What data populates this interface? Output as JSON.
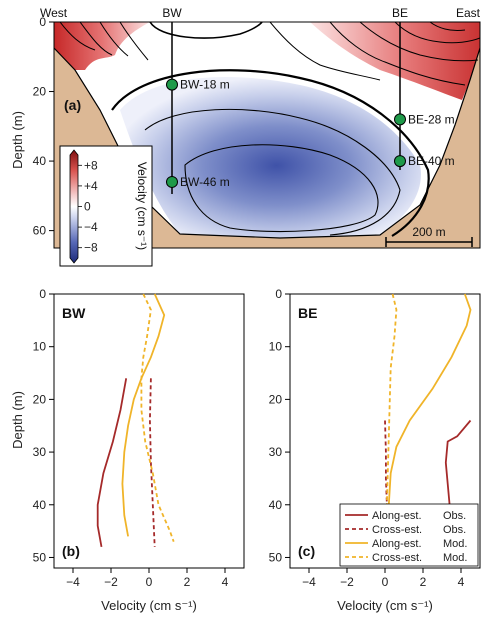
{
  "chart_data": [
    {
      "type": "heatmap",
      "panel_label": "(a)",
      "ylabel": "Depth (m)",
      "ylim": [
        0,
        65
      ],
      "yticks": [
        "0",
        "20",
        "40",
        "60"
      ],
      "top_labels": {
        "west": "West",
        "bw": "BW",
        "be": "BE",
        "east": "East"
      },
      "stations": [
        {
          "label": "BW-18 m",
          "depth": 18,
          "mooring": "BW"
        },
        {
          "label": "BW-46 m",
          "depth": 46,
          "mooring": "BW"
        },
        {
          "label": "BE-28 m",
          "depth": 28,
          "mooring": "BE"
        },
        {
          "label": "BE-40 m",
          "depth": 40,
          "mooring": "BE"
        }
      ],
      "colorbar": {
        "label": "Velocity (cm s⁻¹)",
        "range": [
          -10,
          10
        ],
        "ticks": [
          "+8",
          "+4",
          "0",
          "−4",
          "−8"
        ],
        "colors": {
          "pos": "#c62828",
          "neg": "#3a4fa3",
          "zero": "#ffffff"
        }
      },
      "scalebar": "200 m",
      "seabed_color": "#dcb895"
    },
    {
      "type": "line",
      "panel_label": "(b)",
      "title": "BW",
      "xlabel": "Velocity (cm s⁻¹)",
      "ylabel": "Depth (m)",
      "xlim": [
        -5,
        5
      ],
      "ylim": [
        0,
        52
      ],
      "xticks": [
        "−4",
        "−2",
        "0",
        "2",
        "4"
      ],
      "yticks": [
        "0",
        "10",
        "20",
        "30",
        "40",
        "50"
      ],
      "series": [
        {
          "key": "along_obs",
          "color": "#a52a2a",
          "dash": "",
          "points": [
            [
              -1.2,
              16
            ],
            [
              -1.5,
              22
            ],
            [
              -1.9,
              28
            ],
            [
              -2.4,
              34
            ],
            [
              -2.7,
              40
            ],
            [
              -2.7,
              44
            ],
            [
              -2.5,
              48
            ]
          ]
        },
        {
          "key": "cross_obs",
          "color": "#a52a2a",
          "dash": "4,3",
          "points": [
            [
              0.1,
              16
            ],
            [
              0.05,
              24
            ],
            [
              0.1,
              32
            ],
            [
              0.2,
              40
            ],
            [
              0.3,
              48
            ]
          ]
        },
        {
          "key": "along_mod",
          "color": "#f0b429",
          "dash": "",
          "points": [
            [
              0.3,
              0
            ],
            [
              0.8,
              4
            ],
            [
              0.5,
              8
            ],
            [
              0.1,
              12
            ],
            [
              -0.4,
              16
            ],
            [
              -0.8,
              20
            ],
            [
              -1.1,
              25
            ],
            [
              -1.3,
              30
            ],
            [
              -1.4,
              36
            ],
            [
              -1.3,
              42
            ],
            [
              -1.1,
              46
            ]
          ]
        },
        {
          "key": "cross_mod",
          "color": "#f0b429",
          "dash": "4,3",
          "points": [
            [
              -0.3,
              0
            ],
            [
              0.1,
              3
            ],
            [
              -0.1,
              8
            ],
            [
              -0.3,
              12
            ],
            [
              -0.4,
              16
            ],
            [
              -0.4,
              22
            ],
            [
              -0.2,
              28
            ],
            [
              0.2,
              34
            ],
            [
              0.5,
              40
            ],
            [
              1.1,
              45
            ],
            [
              1.3,
              47
            ]
          ]
        }
      ]
    },
    {
      "type": "line",
      "panel_label": "(c)",
      "title": "BE",
      "xlabel": "Velocity (cm s⁻¹)",
      "xlim": [
        -5,
        5
      ],
      "ylim": [
        0,
        52
      ],
      "xticks": [
        "−4",
        "−2",
        "0",
        "2",
        "4"
      ],
      "yticks": [
        "0",
        "10",
        "20",
        "30",
        "40",
        "50"
      ],
      "series": [
        {
          "key": "along_obs",
          "color": "#a52a2a",
          "dash": "",
          "points": [
            [
              4.5,
              24
            ],
            [
              3.8,
              27
            ],
            [
              3.3,
              28
            ],
            [
              3.2,
              32
            ],
            [
              3.3,
              36
            ],
            [
              3.4,
              40
            ]
          ]
        },
        {
          "key": "cross_obs",
          "color": "#a52a2a",
          "dash": "4,3",
          "points": [
            [
              0.0,
              24
            ],
            [
              0.05,
              30
            ],
            [
              0.05,
              35
            ],
            [
              0.1,
              40
            ]
          ]
        },
        {
          "key": "along_mod",
          "color": "#f0b429",
          "dash": "",
          "points": [
            [
              4.2,
              0
            ],
            [
              4.5,
              3
            ],
            [
              4.3,
              6
            ],
            [
              3.5,
              12
            ],
            [
              2.5,
              18
            ],
            [
              1.3,
              24
            ],
            [
              0.6,
              29
            ],
            [
              0.3,
              34
            ],
            [
              0.2,
              40
            ]
          ]
        },
        {
          "key": "cross_mod",
          "color": "#f0b429",
          "dash": "4,3",
          "points": [
            [
              0.4,
              0
            ],
            [
              0.6,
              3
            ],
            [
              0.5,
              8
            ],
            [
              0.3,
              14
            ],
            [
              0.25,
              20
            ],
            [
              0.2,
              27
            ],
            [
              0.15,
              33
            ],
            [
              0.1,
              40
            ]
          ]
        }
      ],
      "legend": {
        "position": "bottom-right",
        "entries": [
          {
            "key": "along_obs",
            "col1": "Along-est.",
            "col2": "Obs."
          },
          {
            "key": "cross_obs",
            "col1": "Cross-est.",
            "col2": "Obs."
          },
          {
            "key": "along_mod",
            "col1": "Along-est.",
            "col2": "Mod."
          },
          {
            "key": "cross_mod",
            "col1": "Cross-est.",
            "col2": "Mod."
          }
        ]
      }
    }
  ]
}
